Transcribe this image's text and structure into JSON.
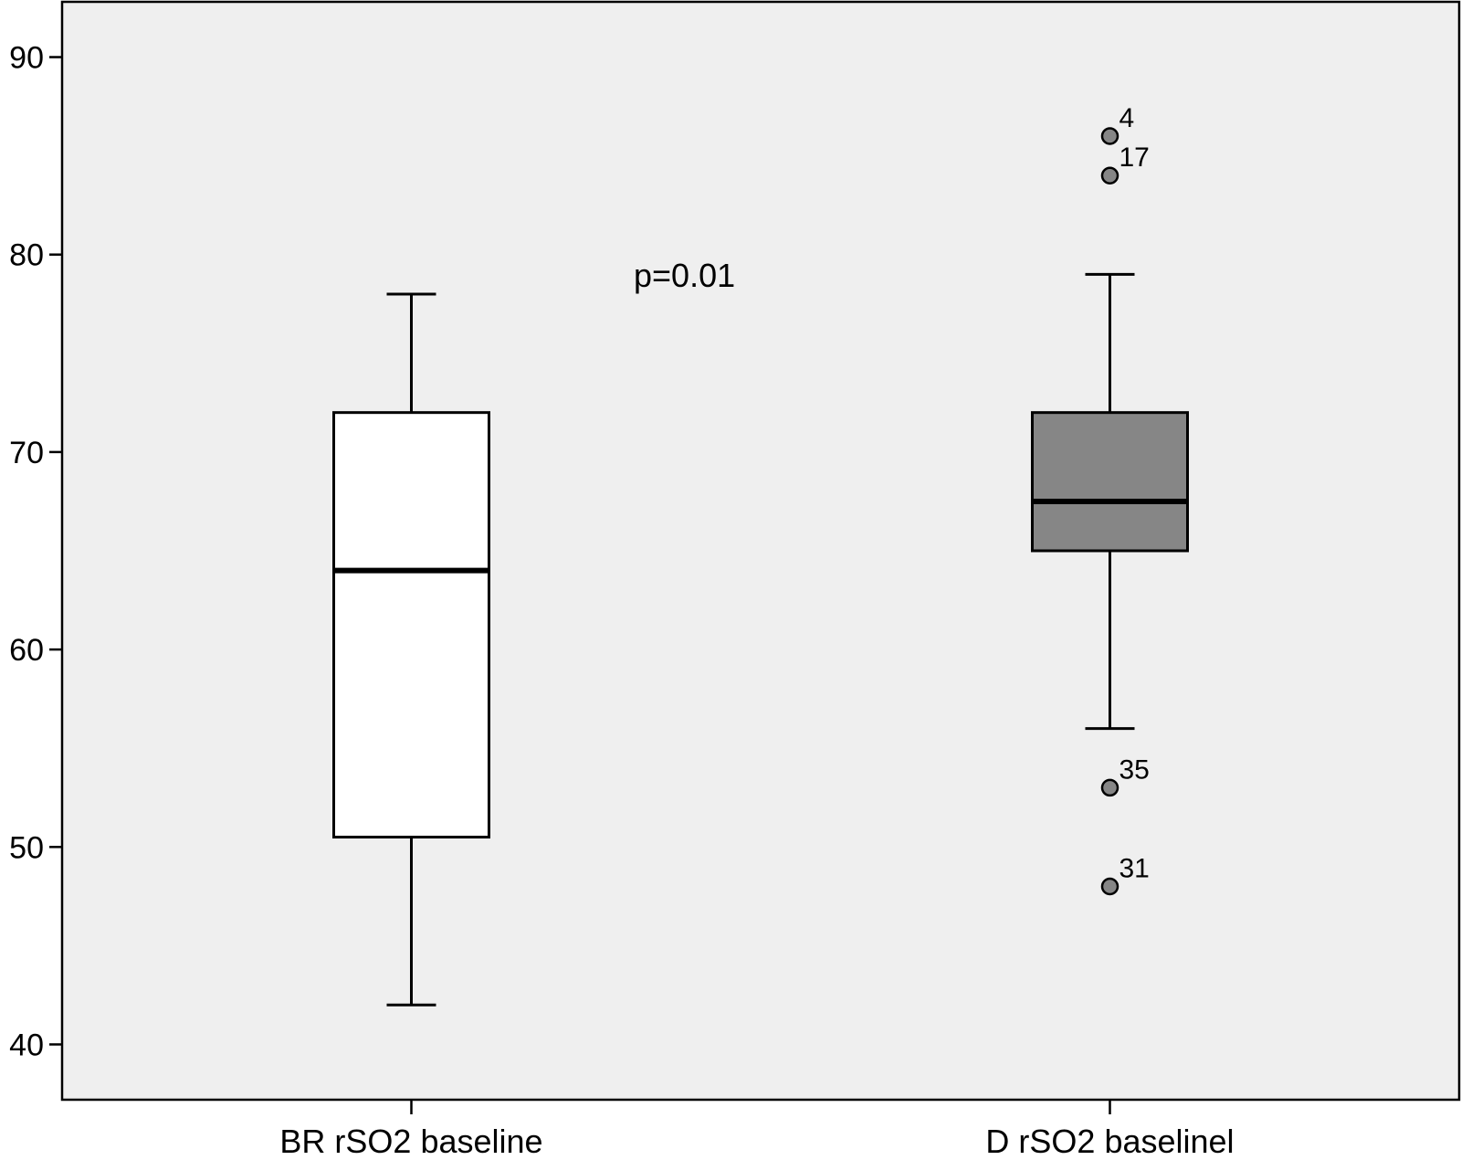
{
  "chart_data": {
    "type": "boxplot",
    "title": "",
    "xlabel": "",
    "ylabel": "",
    "ylim": [
      37.2,
      92.8
    ],
    "yticks": [
      40,
      50,
      60,
      70,
      80,
      90
    ],
    "grid": false,
    "plot_background": "#efefef",
    "annotation": "p=0.01",
    "series": [
      {
        "category": "BR rSO2 baseline",
        "min": 42,
        "q1": 50.5,
        "median": 64,
        "q3": 72,
        "max": 78,
        "fill": "#ffffff",
        "outliers": []
      },
      {
        "category": "D rSO2 baselinel",
        "min": 56,
        "q1": 65,
        "median": 67.5,
        "q3": 72,
        "max": 79,
        "fill": "#868686",
        "outliers": [
          {
            "value": 86,
            "label": "4"
          },
          {
            "value": 84,
            "label": "17"
          },
          {
            "value": 53,
            "label": "35"
          },
          {
            "value": 48,
            "label": "31"
          }
        ]
      }
    ]
  }
}
